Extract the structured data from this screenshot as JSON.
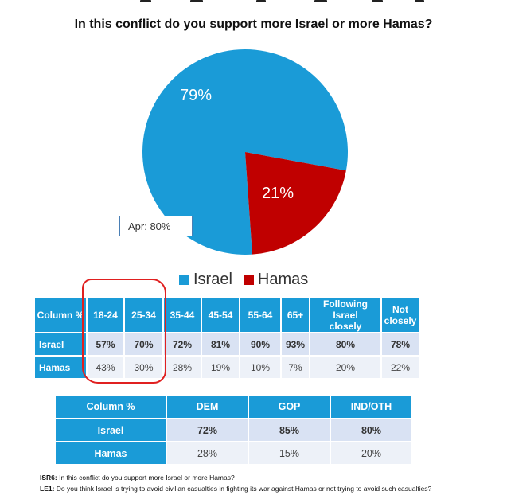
{
  "chart_data": {
    "type": "pie",
    "title": "In this conflict do you support more Israel or more Hamas?",
    "slices": [
      {
        "label": "Israel",
        "value": 79,
        "color": "#1a9bd7",
        "text": "79%"
      },
      {
        "label": "Hamas",
        "value": 21,
        "color": "#c00000",
        "text": "21%"
      }
    ],
    "annotation": "Apr: 80%",
    "legend": [
      "Israel",
      "Hamas"
    ],
    "legend_placement": "bottom"
  },
  "table_age": {
    "headers": [
      "Column %",
      "18-24",
      "25-34",
      "35-44",
      "45-54",
      "55-64",
      "65+",
      "Following Israel closely",
      "Not closely"
    ],
    "rows": [
      {
        "label": "Israel",
        "values": [
          "57%",
          "70%",
          "72%",
          "81%",
          "90%",
          "93%",
          "80%",
          "78%"
        ]
      },
      {
        "label": "Hamas",
        "values": [
          "43%",
          "30%",
          "28%",
          "19%",
          "10%",
          "7%",
          "20%",
          "22%"
        ]
      }
    ]
  },
  "table_party": {
    "headers": [
      "Column %",
      "DEM",
      "GOP",
      "IND/OTH"
    ],
    "rows": [
      {
        "label": "Israel",
        "values": [
          "72%",
          "85%",
          "80%"
        ]
      },
      {
        "label": "Hamas",
        "values": [
          "28%",
          "15%",
          "20%"
        ]
      }
    ]
  },
  "footnotes": [
    {
      "code": "ISR6:",
      "text": " In this conflict do you support more Israel or more Hamas?"
    },
    {
      "code": "LE1:",
      "text": " Do you think Israel is trying to avoid civilian casualties in fighting its war against Hamas or not trying to avoid such casualties?"
    }
  ]
}
